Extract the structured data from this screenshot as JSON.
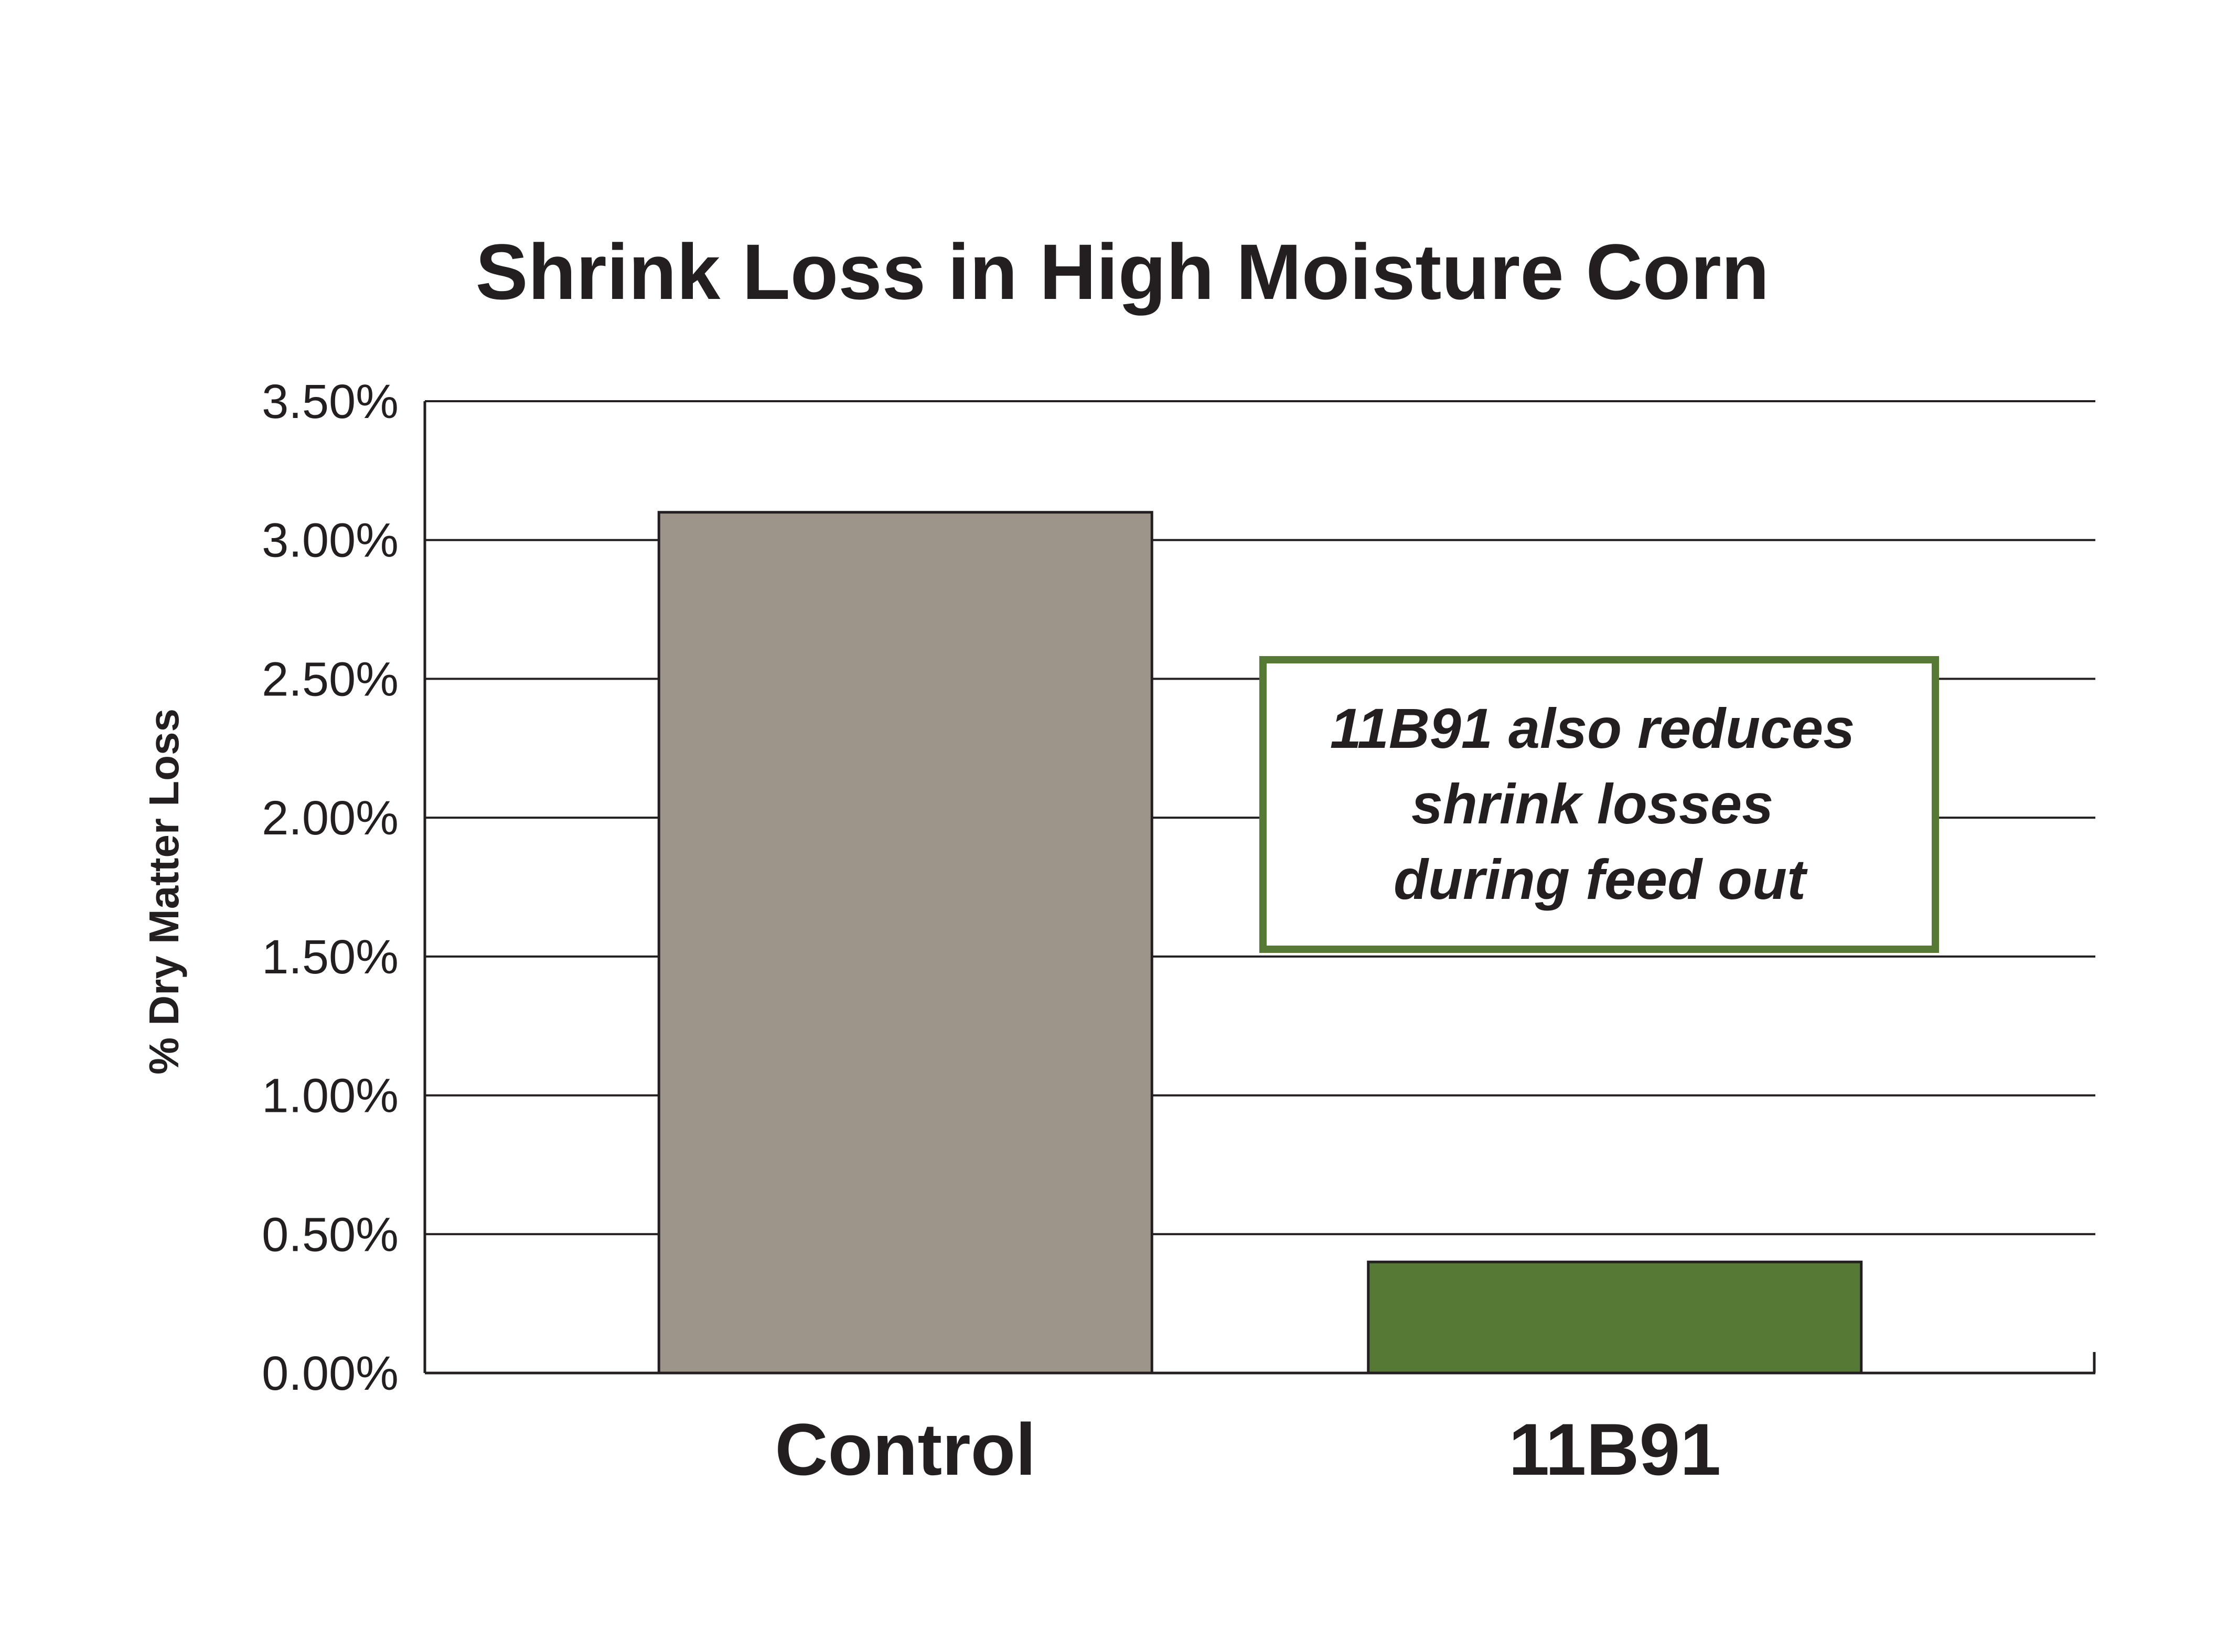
{
  "chart_data": {
    "type": "bar",
    "title": "Shrink Loss in High Moisture Corn",
    "ylabel": "% Dry Matter Loss",
    "xlabel": "",
    "categories": [
      "Control",
      "11B91"
    ],
    "values": [
      0.031,
      0.004
    ],
    "bar_colors": [
      "#9d958a",
      "#567a35"
    ],
    "ylim": [
      0,
      0.035
    ],
    "yticks": [
      {
        "value": 0,
        "label": "0.00%"
      },
      {
        "value": 0.005,
        "label": "0.50%"
      },
      {
        "value": 0.01,
        "label": "1.00%"
      },
      {
        "value": 0.015,
        "label": "1.50%"
      },
      {
        "value": 0.02,
        "label": "2.00%"
      },
      {
        "value": 0.025,
        "label": "2.50%"
      },
      {
        "value": 0.03,
        "label": "3.00%"
      },
      {
        "value": 0.035,
        "label": "3.50%"
      }
    ],
    "grid": true,
    "legend": "none",
    "annotation": {
      "lines": [
        "11B91 also reduces",
        "shrink losses",
        "during feed out"
      ],
      "border_color": "#567a35"
    }
  }
}
